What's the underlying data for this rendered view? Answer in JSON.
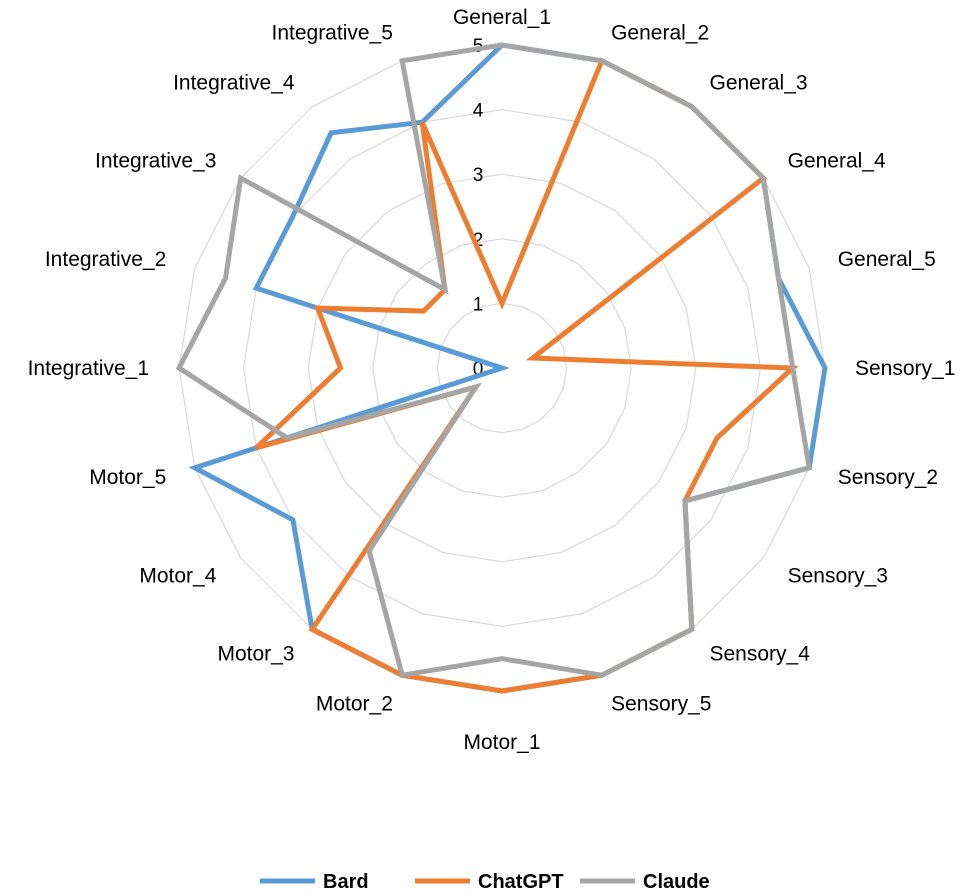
{
  "chart_data": {
    "type": "radar",
    "title": "",
    "categories": [
      "General_1",
      "General_2",
      "General_3",
      "General_4",
      "General_5",
      "Sensory_1",
      "Sensory_2",
      "Sensory_3",
      "Sensory_4",
      "Sensory_5",
      "Motor_1",
      "Motor_2",
      "Motor_3",
      "Motor_4",
      "Motor_5",
      "Integrative_1",
      "Integrative_2",
      "Integrative_3",
      "Integrative_4",
      "Integrative_5"
    ],
    "rlim": [
      0,
      5
    ],
    "ticks": [
      "0",
      "1",
      "2",
      "3",
      "4",
      "5"
    ],
    "grid": true,
    "legend_position": "bottom",
    "series": [
      {
        "name": "Bard",
        "color": "#5b9bd5",
        "values": [
          5,
          5,
          5,
          5,
          4.5,
          5,
          5,
          3.5,
          5,
          5,
          5,
          5,
          5,
          4,
          5,
          0,
          4,
          4,
          4.5,
          4
        ]
      },
      {
        "name": "ChatGPT",
        "color": "#ed7d31",
        "values": [
          1,
          5,
          5,
          5,
          0.5,
          4.5,
          3.5,
          3.5,
          5,
          5,
          5,
          5,
          5,
          0.5,
          4,
          2.5,
          3,
          1.5,
          1.5,
          4
        ]
      },
      {
        "name": "Claude",
        "color": "#a5a5a5",
        "values": [
          5,
          5,
          5,
          5,
          4.5,
          4.5,
          5,
          3.5,
          5,
          5,
          4.5,
          5,
          3.5,
          0.5,
          3.5,
          5,
          4.5,
          5,
          1.5,
          5
        ]
      }
    ]
  }
}
